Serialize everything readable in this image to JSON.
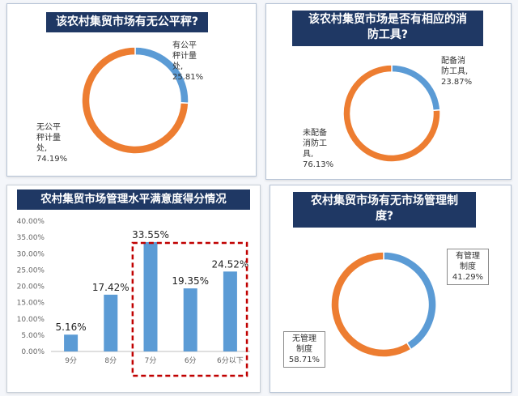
{
  "panels": [
    {
      "title": "该农村集贸市场有无公平秤?",
      "chart_data": {
        "type": "pie",
        "donut": true,
        "slices": [
          {
            "label_lines": [
              "有公平",
              "秤计量",
              "处,",
              "25.81%"
            ],
            "value": 25.81,
            "color": "#5b9bd5"
          },
          {
            "label_lines": [
              "无公平",
              "秤计量",
              "处,",
              "74.19%"
            ],
            "value": 74.19,
            "color": "#ed7d31"
          }
        ]
      }
    },
    {
      "title_lines": [
        "该农村集贸市场是否有相应的消",
        "防工具?"
      ],
      "chart_data": {
        "type": "pie",
        "donut": true,
        "slices": [
          {
            "label_lines": [
              "配备消",
              "防工具,",
              "23.87%"
            ],
            "value": 23.87,
            "color": "#5b9bd5"
          },
          {
            "label_lines": [
              "未配备",
              "消防工",
              "具,",
              "76.13%"
            ],
            "value": 76.13,
            "color": "#ed7d31"
          }
        ]
      }
    },
    {
      "title": "农村集贸市场管理水平满意度得分情况",
      "chart_data": {
        "type": "bar",
        "categories": [
          "9分",
          "8分",
          "7分",
          "6分",
          "6分以下"
        ],
        "values": [
          5.16,
          17.42,
          33.55,
          19.35,
          24.52
        ],
        "value_labels": [
          "5.16%",
          "17.42%",
          "33.55%",
          "19.35%",
          "24.52%"
        ],
        "ylim": [
          0,
          40
        ],
        "y_ticks": [
          "0.00%",
          "5.00%",
          "10.00%",
          "15.00%",
          "20.00%",
          "25.00%",
          "30.00%",
          "35.00%",
          "40.00%"
        ],
        "bar_color": "#5b9bd5",
        "highlight_color": "#c00000",
        "highlight_categories": [
          "7分",
          "6分",
          "6分以下"
        ]
      }
    },
    {
      "title_lines": [
        "农村集贸市场有无市场管理制",
        "度?"
      ],
      "chart_data": {
        "type": "pie",
        "donut": true,
        "slices": [
          {
            "label_lines": [
              "有管理",
              "制度",
              "41.29%"
            ],
            "value": 41.29,
            "color": "#5b9bd5"
          },
          {
            "label_lines": [
              "无管理",
              "制度",
              "58.71%"
            ],
            "value": 58.71,
            "color": "#ed7d31"
          }
        ]
      }
    }
  ]
}
